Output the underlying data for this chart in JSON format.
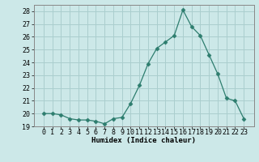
{
  "x": [
    0,
    1,
    2,
    3,
    4,
    5,
    6,
    7,
    8,
    9,
    10,
    11,
    12,
    13,
    14,
    15,
    16,
    17,
    18,
    19,
    20,
    21,
    22,
    23
  ],
  "y": [
    20.0,
    20.0,
    19.9,
    19.6,
    19.5,
    19.5,
    19.4,
    19.2,
    19.6,
    19.7,
    20.8,
    22.2,
    23.9,
    25.1,
    25.6,
    26.1,
    28.1,
    26.8,
    26.1,
    24.6,
    23.1,
    21.2,
    21.0,
    19.6
  ],
  "line_color": "#2d7d6e",
  "marker": "D",
  "marker_size": 2.5,
  "bg_color": "#cce8e8",
  "grid_color": "#aacece",
  "xlabel": "Humidex (Indice chaleur)",
  "ylabel": "",
  "ylim": [
    19,
    28.5
  ],
  "yticks": [
    19,
    20,
    21,
    22,
    23,
    24,
    25,
    26,
    27,
    28
  ],
  "xticks": [
    0,
    1,
    2,
    3,
    4,
    5,
    6,
    7,
    8,
    9,
    10,
    11,
    12,
    13,
    14,
    15,
    16,
    17,
    18,
    19,
    20,
    21,
    22,
    23
  ],
  "xlabel_fontsize": 6.5,
  "tick_fontsize": 6
}
